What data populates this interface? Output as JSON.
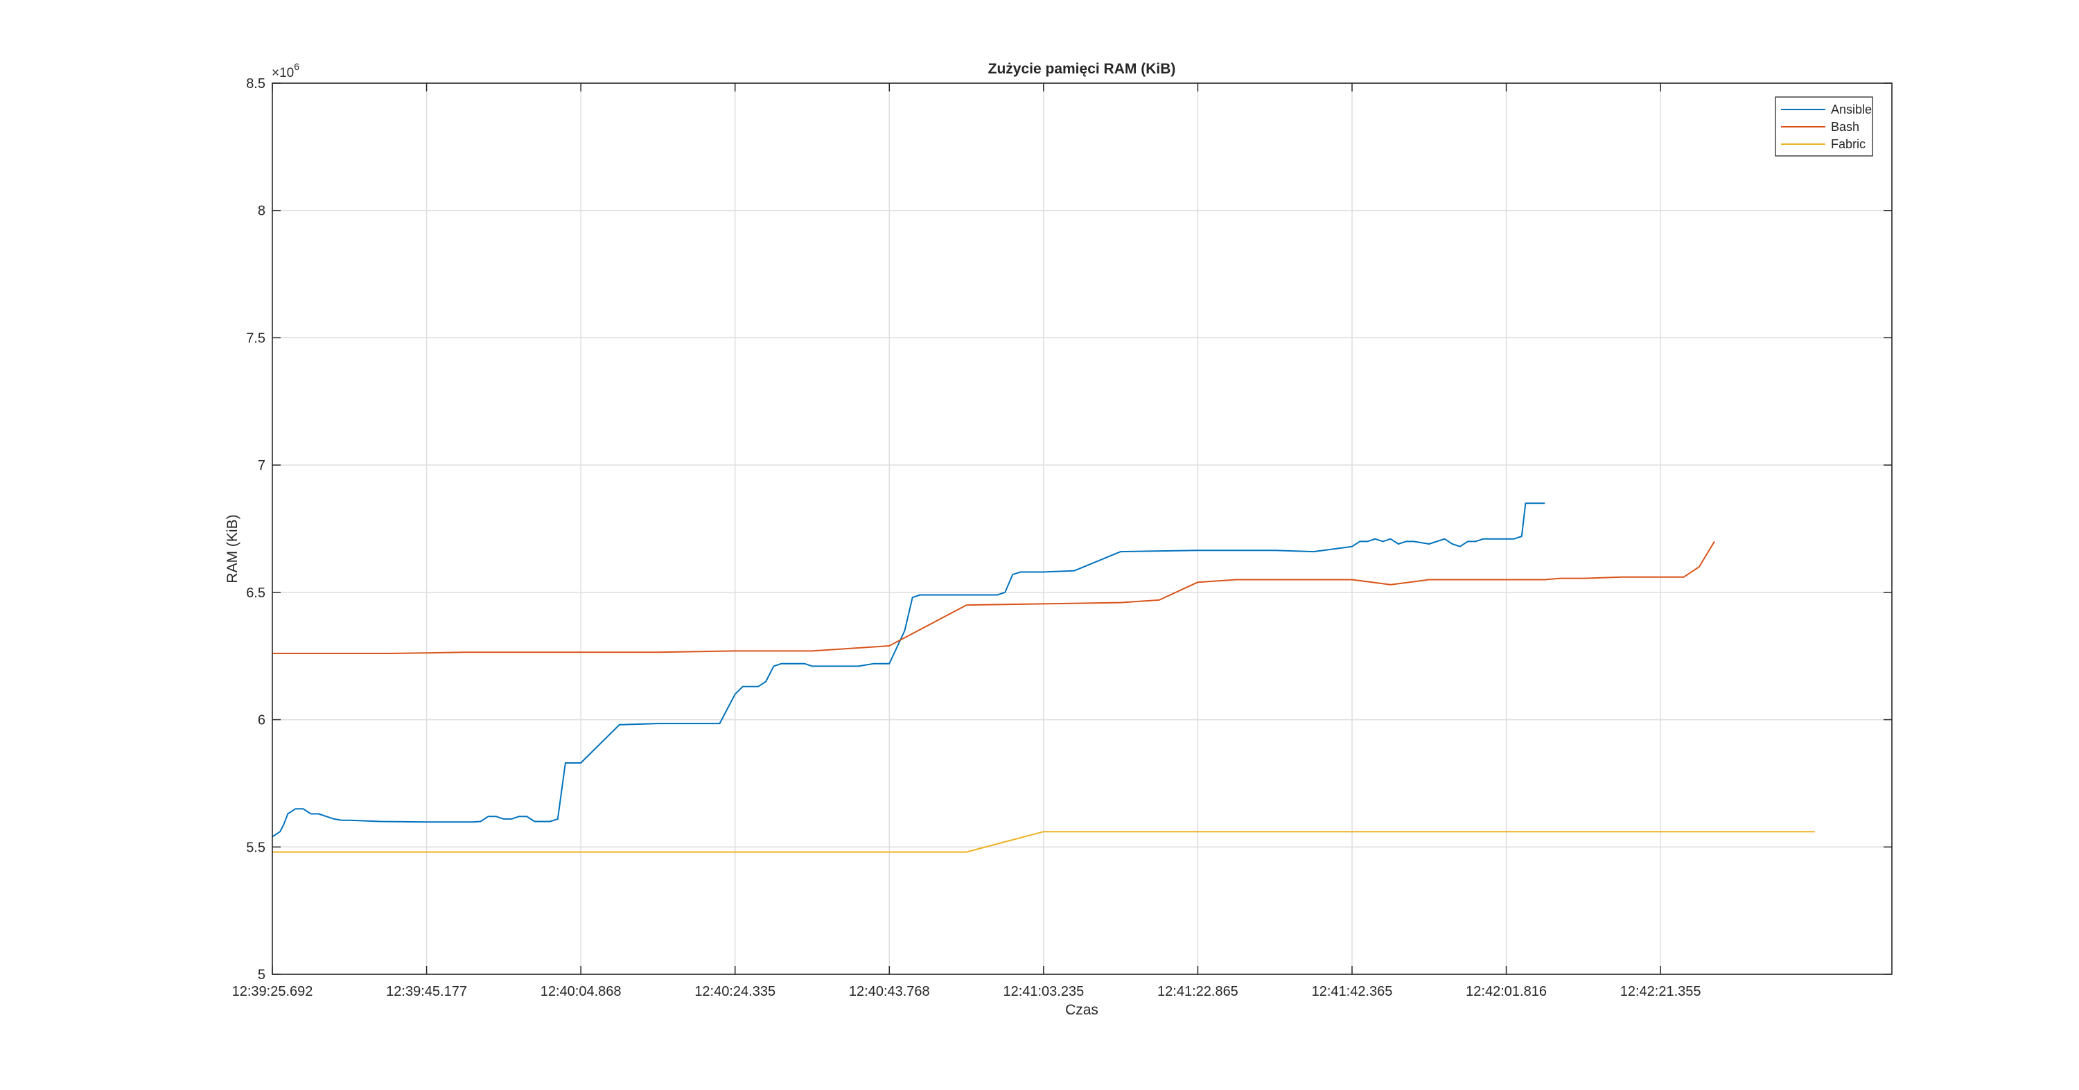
{
  "chart_data": {
    "type": "line",
    "title": "Zużycie pamięci RAM (KiB)",
    "xlabel": "Czas",
    "ylabel": "RAM (KiB)",
    "y_exponent_label": "×10",
    "y_exponent_power": "6",
    "ylim": [
      5,
      8.5
    ],
    "yticks": [
      5,
      5.5,
      6,
      6.5,
      7,
      7.5,
      8,
      8.5
    ],
    "ytick_labels": [
      "5",
      "5.5",
      "6",
      "6.5",
      "7",
      "7.5",
      "8",
      "8.5"
    ],
    "xlim": [
      0,
      210
    ],
    "xticks": [
      0,
      20,
      40,
      60,
      80,
      100,
      120,
      140,
      160,
      180
    ],
    "xtick_labels": [
      "12:39:25.692",
      "12:39:45.177",
      "12:40:04.868",
      "12:40:24.335",
      "12:40:43.768",
      "12:41:03.235",
      "12:41:22.865",
      "12:41:42.365",
      "12:42:01.816",
      "12:42:21.355"
    ],
    "x_unit_note": "seconds after 12:39:25.692",
    "grid": true,
    "legend_position": "top-right",
    "series": [
      {
        "name": "Ansible",
        "color": "#0072BD",
        "x": [
          0,
          1,
          1.5,
          2,
          3,
          4,
          5,
          6,
          7,
          8,
          9,
          10,
          14,
          20,
          26,
          27,
          28,
          29,
          30,
          31,
          32,
          33,
          34,
          35,
          36,
          37,
          38,
          40,
          45,
          50,
          52,
          53,
          54,
          55,
          56,
          57,
          58,
          60,
          61,
          62,
          63,
          64,
          65,
          66,
          67,
          68,
          69,
          70,
          72,
          74,
          76,
          78,
          80,
          82,
          83,
          84,
          85,
          86,
          87,
          88,
          90,
          92,
          94,
          95,
          96,
          97,
          98,
          99,
          100,
          104,
          110,
          120,
          130,
          135,
          140,
          141,
          142,
          143,
          144,
          145,
          146,
          147,
          148,
          150,
          152,
          153,
          154,
          155,
          156,
          157,
          158,
          159,
          160,
          161,
          162,
          162.5,
          163,
          164,
          164.5,
          165
        ],
        "y": [
          5.54,
          5.56,
          5.59,
          5.63,
          5.65,
          5.65,
          5.63,
          5.63,
          5.62,
          5.61,
          5.605,
          5.605,
          5.6,
          5.598,
          5.598,
          5.6,
          5.62,
          5.62,
          5.61,
          5.61,
          5.62,
          5.62,
          5.6,
          5.6,
          5.6,
          5.61,
          5.83,
          5.83,
          5.98,
          5.985,
          5.985,
          5.985,
          5.985,
          5.985,
          5.985,
          5.985,
          5.985,
          6.1,
          6.13,
          6.13,
          6.13,
          6.15,
          6.21,
          6.22,
          6.22,
          6.22,
          6.22,
          6.21,
          6.21,
          6.21,
          6.21,
          6.22,
          6.22,
          6.35,
          6.48,
          6.49,
          6.49,
          6.49,
          6.49,
          6.49,
          6.49,
          6.49,
          6.49,
          6.5,
          6.57,
          6.58,
          6.58,
          6.58,
          6.58,
          6.585,
          6.66,
          6.665,
          6.665,
          6.66,
          6.68,
          6.7,
          6.7,
          6.71,
          6.7,
          6.71,
          6.69,
          6.7,
          6.7,
          6.69,
          6.71,
          6.69,
          6.68,
          6.7,
          6.7,
          6.71,
          6.71,
          6.71,
          6.71,
          6.71,
          6.72,
          6.85,
          6.85,
          6.85,
          6.85,
          6.85
        ]
      },
      {
        "name": "Bash",
        "color": "#D95319",
        "x": [
          0,
          5,
          10,
          15,
          20,
          25,
          30,
          40,
          50,
          60,
          70,
          80,
          90,
          100,
          110,
          115,
          120,
          125,
          130,
          135,
          140,
          145,
          150,
          155,
          160,
          163,
          165,
          167,
          170,
          175,
          180,
          183,
          185,
          187
        ],
        "y": [
          6.26,
          6.26,
          6.26,
          6.26,
          6.262,
          6.265,
          6.265,
          6.265,
          6.265,
          6.27,
          6.27,
          6.29,
          6.45,
          6.455,
          6.46,
          6.47,
          6.54,
          6.55,
          6.55,
          6.55,
          6.55,
          6.53,
          6.55,
          6.55,
          6.55,
          6.55,
          6.55,
          6.555,
          6.555,
          6.56,
          6.56,
          6.56,
          6.6,
          6.7
        ]
      },
      {
        "name": "Fabric",
        "color": "#EDB120",
        "x": [
          0,
          10,
          20,
          30,
          40,
          50,
          60,
          70,
          80,
          90,
          100,
          110,
          120,
          130,
          140,
          150,
          160,
          170,
          180,
          190,
          200
        ],
        "y": [
          5.48,
          5.48,
          5.48,
          5.48,
          5.48,
          5.48,
          5.48,
          5.48,
          5.48,
          5.48,
          5.56,
          5.56,
          5.56,
          5.56,
          5.56,
          5.56,
          5.56,
          5.56,
          5.56,
          5.56,
          5.56
        ]
      }
    ]
  }
}
